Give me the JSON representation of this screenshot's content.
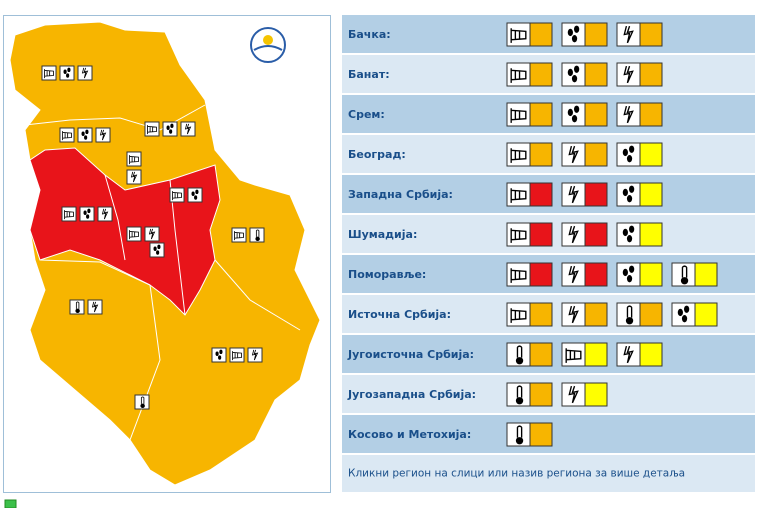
{
  "regions": [
    {
      "name": "Бачка:",
      "warnings": [
        {
          "icon": "wind",
          "color": "#f7b500"
        },
        {
          "icon": "rain",
          "color": "#f7b500"
        },
        {
          "icon": "thunder",
          "color": "#f7b500"
        }
      ]
    },
    {
      "name": "Банат:",
      "warnings": [
        {
          "icon": "wind",
          "color": "#f7b500"
        },
        {
          "icon": "rain",
          "color": "#f7b500"
        },
        {
          "icon": "thunder",
          "color": "#f7b500"
        }
      ]
    },
    {
      "name": "Срем:",
      "warnings": [
        {
          "icon": "wind",
          "color": "#f7b500"
        },
        {
          "icon": "rain",
          "color": "#f7b500"
        },
        {
          "icon": "thunder",
          "color": "#f7b500"
        }
      ]
    },
    {
      "name": "Београд:",
      "warnings": [
        {
          "icon": "wind",
          "color": "#f7b500"
        },
        {
          "icon": "thunder",
          "color": "#f7b500"
        },
        {
          "icon": "rain",
          "color": "#ffff00"
        }
      ]
    },
    {
      "name": "Западна Србија:",
      "warnings": [
        {
          "icon": "wind",
          "color": "#e8141a"
        },
        {
          "icon": "thunder",
          "color": "#e8141a"
        },
        {
          "icon": "rain",
          "color": "#ffff00"
        }
      ]
    },
    {
      "name": "Шумадија:",
      "warnings": [
        {
          "icon": "wind",
          "color": "#e8141a"
        },
        {
          "icon": "thunder",
          "color": "#e8141a"
        },
        {
          "icon": "rain",
          "color": "#ffff00"
        }
      ]
    },
    {
      "name": "Поморавље:",
      "warnings": [
        {
          "icon": "wind",
          "color": "#e8141a"
        },
        {
          "icon": "thunder",
          "color": "#e8141a"
        },
        {
          "icon": "rain",
          "color": "#ffff00"
        },
        {
          "icon": "temp",
          "color": "#ffff00"
        }
      ]
    },
    {
      "name": "Источна Србија:",
      "warnings": [
        {
          "icon": "wind",
          "color": "#f7b500"
        },
        {
          "icon": "thunder",
          "color": "#f7b500"
        },
        {
          "icon": "temp",
          "color": "#f7b500"
        },
        {
          "icon": "rain",
          "color": "#ffff00"
        }
      ]
    },
    {
      "name": "Југоисточна Србија:",
      "warnings": [
        {
          "icon": "temp",
          "color": "#f7b500"
        },
        {
          "icon": "wind",
          "color": "#ffff00"
        },
        {
          "icon": "thunder",
          "color": "#ffff00"
        }
      ]
    },
    {
      "name": "Југозападна Србија:",
      "warnings": [
        {
          "icon": "temp",
          "color": "#f7b500"
        },
        {
          "icon": "thunder",
          "color": "#ffff00"
        }
      ]
    },
    {
      "name": "Косово и Метохија:",
      "warnings": [
        {
          "icon": "temp",
          "color": "#f7b500"
        }
      ]
    }
  ],
  "footer": "Кликни регион на слици или назив региона за више детаља"
}
